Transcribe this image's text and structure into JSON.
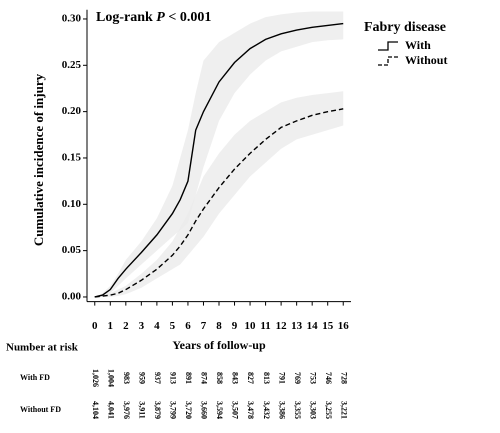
{
  "chart_data": {
    "type": "line",
    "annotation": [
      "Log-rank",
      "P",
      "< 0.001"
    ],
    "legend_title": "Fabry disease",
    "ylabel": "Cumulative incidence of injury",
    "xlabel": "Years of follow-up",
    "x": [
      0,
      0.5,
      1,
      1.5,
      2,
      3,
      4,
      5,
      5.5,
      6,
      6.5,
      7,
      8,
      9,
      10,
      11,
      12,
      13,
      14,
      15,
      16
    ],
    "series": [
      {
        "name": "With",
        "color": "#000000",
        "dash": false,
        "band_color": "#ebebeb",
        "values": [
          0,
          0.002,
          0.008,
          0.02,
          0.03,
          0.048,
          0.067,
          0.09,
          0.105,
          0.125,
          0.18,
          0.2,
          0.232,
          0.253,
          0.268,
          0.278,
          0.284,
          0.288,
          0.291,
          0.293,
          0.295
        ],
        "upper": [
          0,
          0.004,
          0.012,
          0.025,
          0.04,
          0.06,
          0.085,
          0.12,
          0.15,
          0.18,
          0.22,
          0.255,
          0.275,
          0.285,
          0.295,
          0.302,
          0.305,
          0.307,
          0.308,
          0.308,
          0.308
        ],
        "lower": [
          0,
          0,
          0.004,
          0.012,
          0.02,
          0.035,
          0.05,
          0.065,
          0.072,
          0.08,
          0.11,
          0.14,
          0.19,
          0.22,
          0.24,
          0.255,
          0.265,
          0.27,
          0.275,
          0.277,
          0.278
        ]
      },
      {
        "name": "Without",
        "color": "#000000",
        "dash": true,
        "band_color": "#ebebeb",
        "values": [
          0,
          0.001,
          0.002,
          0.004,
          0.008,
          0.018,
          0.03,
          0.045,
          0.055,
          0.067,
          0.082,
          0.095,
          0.118,
          0.138,
          0.155,
          0.17,
          0.183,
          0.19,
          0.196,
          0.2,
          0.203
        ],
        "upper": [
          0,
          0.002,
          0.004,
          0.008,
          0.012,
          0.025,
          0.04,
          0.06,
          0.075,
          0.09,
          0.11,
          0.13,
          0.155,
          0.175,
          0.19,
          0.2,
          0.21,
          0.215,
          0.218,
          0.22,
          0.222
        ],
        "lower": [
          0,
          0,
          0,
          0.001,
          0.003,
          0.01,
          0.02,
          0.03,
          0.035,
          0.045,
          0.055,
          0.065,
          0.09,
          0.11,
          0.13,
          0.145,
          0.16,
          0.17,
          0.175,
          0.18,
          0.185
        ]
      }
    ],
    "xlim": [
      -0.5,
      16.5
    ],
    "ylim": [
      -0.005,
      0.31
    ],
    "xticks": [
      0,
      1,
      2,
      3,
      4,
      5,
      6,
      7,
      8,
      9,
      10,
      11,
      12,
      13,
      14,
      15,
      16
    ],
    "yticks": [
      {
        "value": 0,
        "label": "0.00"
      },
      {
        "value": 0.05,
        "label": "0.05"
      },
      {
        "value": 0.1,
        "label": "0.10"
      },
      {
        "value": 0.15,
        "label": "0.15"
      },
      {
        "value": 0.2,
        "label": "0.20"
      },
      {
        "value": 0.25,
        "label": "0.25"
      },
      {
        "value": 0.3,
        "label": "0.30"
      }
    ],
    "risk_table": {
      "title": "Number at risk",
      "rows": [
        {
          "label": "With FD",
          "values": [
            "1,026",
            "1,004",
            "983",
            "959",
            "937",
            "913",
            "891",
            "874",
            "858",
            "843",
            "827",
            "813",
            "791",
            "769",
            "753",
            "746",
            "728"
          ]
        },
        {
          "label": "Without FD",
          "values": [
            "4,104",
            "4,041",
            "3,976",
            "3,911",
            "3,879",
            "3,799",
            "3,720",
            "3,660",
            "3,594",
            "3,507",
            "3,478",
            "3,432",
            "3,386",
            "3,355",
            "3,303",
            "3,255",
            "3,221"
          ]
        }
      ]
    }
  }
}
